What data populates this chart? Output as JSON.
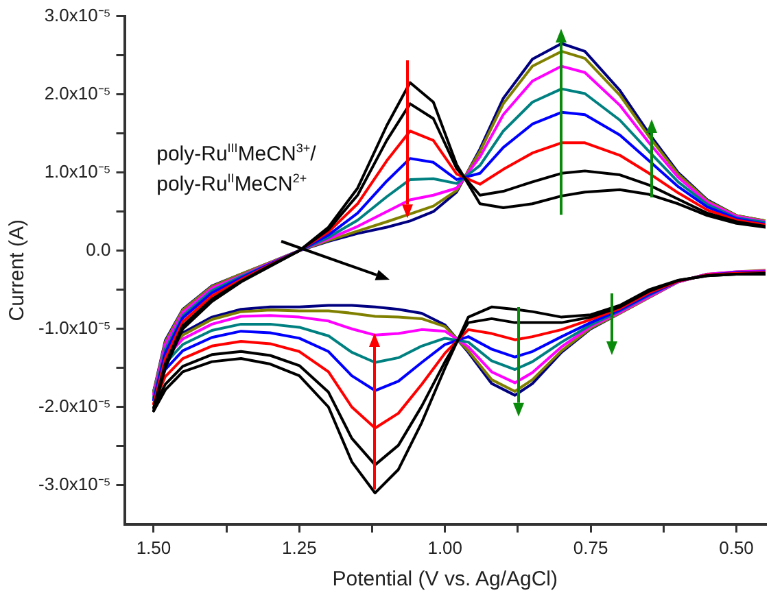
{
  "chart_data": {
    "type": "line",
    "xlabel": "Potential (V vs. Ag/AgCl)",
    "ylabel": "Current (A)",
    "annotations": [
      "poly-Ru$^{III}$MeCN$^{3+}$/\npoly-Ru$^{II}$MeCN$^{2+}$"
    ],
    "xlim": [
      1.55,
      0.45
    ],
    "xticks": [
      {
        "value": 1.5,
        "label": "1.50"
      },
      {
        "value": 1.375,
        "label": null
      },
      {
        "value": 1.25,
        "label": "1.25"
      },
      {
        "value": 1.125,
        "label": null
      },
      {
        "value": 1.0,
        "label": "1.00"
      },
      {
        "value": 0.875,
        "label": null
      },
      {
        "value": 0.75,
        "label": "0.75"
      },
      {
        "value": 0.625,
        "label": null
      },
      {
        "value": 0.5,
        "label": "0.50"
      }
    ],
    "ylim": [
      -3.5e-05,
      3e-05
    ],
    "yticks": [
      {
        "value": -3e-05,
        "label": "-3.0x10⁻⁵"
      },
      {
        "value": -2.5e-05,
        "label": null
      },
      {
        "value": -2e-05,
        "label": "-2.0x10⁻⁵"
      },
      {
        "value": -1.5e-05,
        "label": null
      },
      {
        "value": -1e-05,
        "label": "-1.0x10⁻⁵"
      },
      {
        "value": -5e-06,
        "label": null
      },
      {
        "value": 0,
        "label": "0.0"
      },
      {
        "value": 5e-06,
        "label": null
      },
      {
        "value": 1e-05,
        "label": "1.0x10⁻⁵"
      },
      {
        "value": 1.5e-05,
        "label": null
      },
      {
        "value": 2e-05,
        "label": "2.0x10⁻⁵"
      },
      {
        "value": 2.5e-05,
        "label": null
      },
      {
        "value": 3e-05,
        "label": "3.0x10⁻⁵"
      }
    ],
    "legend": false,
    "marker": "none",
    "line_style": "solid",
    "series": [
      {
        "color": "#000000",
        "x": [
          1.5,
          1.48,
          1.45,
          1.4,
          1.35,
          1.3,
          1.25,
          1.2,
          1.15,
          1.1,
          1.06,
          1.02,
          0.98,
          0.94,
          0.9,
          0.85,
          0.8,
          0.76,
          0.7,
          0.65,
          0.6,
          0.55,
          0.5,
          0.45
        ],
        "values": [
          -2.05e-05,
          -1.5e-05,
          -1e-05,
          -6.5e-06,
          -4e-06,
          -2e-06,
          0,
          3e-06,
          8e-06,
          1.6e-05,
          2.15e-05,
          1.9e-05,
          1.1e-05,
          6e-06,
          5.5e-06,
          6e-06,
          7e-06,
          7.5e-06,
          7.8e-06,
          7.2e-06,
          6e-06,
          4.5e-06,
          3.5e-06,
          3e-06
        ]
      },
      {
        "color": "#000000",
        "x": [
          0.45,
          0.5,
          0.55,
          0.6,
          0.65,
          0.7,
          0.75,
          0.8,
          0.85,
          0.88,
          0.92,
          0.96,
          1.0,
          1.04,
          1.08,
          1.12,
          1.16,
          1.2,
          1.25,
          1.3,
          1.35,
          1.4,
          1.45,
          1.48,
          1.5
        ],
        "values": [
          -3e-06,
          -3e-06,
          -3.2e-06,
          -3.8e-06,
          -5e-06,
          -7e-06,
          -8.2e-06,
          -8.5e-06,
          -7.8e-06,
          -7.5e-06,
          -7.2e-06,
          -8.5e-06,
          -1.5e-05,
          -2.2e-05,
          -2.8e-05,
          -3.1e-05,
          -2.7e-05,
          -2e-05,
          -1.6e-05,
          -1.45e-05,
          -1.38e-05,
          -1.42e-05,
          -1.55e-05,
          -1.78e-05,
          -2.05e-05
        ]
      },
      {
        "color": "#000000",
        "x": [
          1.5,
          1.48,
          1.45,
          1.4,
          1.35,
          1.3,
          1.25,
          1.2,
          1.15,
          1.1,
          1.06,
          1.02,
          0.98,
          0.94,
          0.9,
          0.85,
          0.8,
          0.76,
          0.7,
          0.65,
          0.6,
          0.55,
          0.5,
          0.45
        ],
        "values": [
          -2.01e-05,
          -1.45e-05,
          -9.6e-06,
          -6.2e-06,
          -3.9e-06,
          -1.9e-06,
          0,
          2.7e-06,
          7.1e-06,
          1.41e-05,
          1.88e-05,
          1.69e-05,
          1.05e-05,
          7.1e-06,
          7.6e-06,
          8.8e-06,
          9.9e-06,
          1.02e-05,
          9.7e-06,
          8.4e-06,
          6.6e-06,
          4.8e-06,
          3.7e-06,
          3.1e-06
        ]
      },
      {
        "color": "#000000",
        "x": [
          0.45,
          0.5,
          0.55,
          0.6,
          0.65,
          0.7,
          0.75,
          0.8,
          0.85,
          0.88,
          0.92,
          0.96,
          1.0,
          1.04,
          1.08,
          1.12,
          1.16,
          1.2,
          1.25,
          1.3,
          1.35,
          1.4,
          1.45,
          1.48,
          1.5
        ],
        "values": [
          -2.9e-06,
          -3e-06,
          -3.2e-06,
          -3.8e-06,
          -5.2e-06,
          -7.2e-06,
          -8.5e-06,
          -9.2e-06,
          -9.2e-06,
          -9.2e-06,
          -8.7e-06,
          -9.2e-06,
          -1.42e-05,
          -1.99e-05,
          -2.49e-05,
          -2.74e-05,
          -2.4e-05,
          -1.81e-05,
          -1.47e-05,
          -1.34e-05,
          -1.29e-05,
          -1.33e-05,
          -1.48e-05,
          -1.71e-05,
          -2.01e-05
        ]
      },
      {
        "color": "#ff0000",
        "x": [
          1.5,
          1.48,
          1.45,
          1.4,
          1.35,
          1.3,
          1.25,
          1.2,
          1.15,
          1.1,
          1.06,
          1.02,
          0.98,
          0.94,
          0.9,
          0.85,
          0.8,
          0.76,
          0.7,
          0.65,
          0.6,
          0.55,
          0.5,
          0.45
        ],
        "values": [
          -1.96e-05,
          -1.38e-05,
          -9.1e-06,
          -5.8e-06,
          -3.7e-06,
          -1.8e-06,
          0,
          2.4e-06,
          6e-06,
          1.15e-05,
          1.53e-05,
          1.41e-05,
          9.8e-06,
          8.5e-06,
          1.04e-05,
          1.25e-05,
          1.38e-05,
          1.38e-05,
          1.22e-05,
          9.9e-06,
          7.4e-06,
          5.2e-06,
          3.9e-06,
          3.3e-06
        ]
      },
      {
        "color": "#ff0000",
        "x": [
          0.45,
          0.5,
          0.55,
          0.6,
          0.65,
          0.7,
          0.75,
          0.8,
          0.85,
          0.88,
          0.92,
          0.96,
          1.0,
          1.04,
          1.08,
          1.12,
          1.16,
          1.2,
          1.25,
          1.3,
          1.35,
          1.4,
          1.45,
          1.48,
          1.5
        ],
        "values": [
          -2.8e-06,
          -2.9e-06,
          -3.1e-06,
          -3.9e-06,
          -5.4e-06,
          -7.4e-06,
          -8.8e-06,
          -1.01e-05,
          -1.1e-05,
          -1.14e-05,
          -1.06e-05,
          -1.01e-05,
          -1.31e-05,
          -1.71e-05,
          -2.08e-05,
          -2.27e-05,
          -2e-05,
          -1.55e-05,
          -1.29e-05,
          -1.19e-05,
          -1.16e-05,
          -1.22e-05,
          -1.38e-05,
          -1.61e-05,
          -1.96e-05
        ]
      },
      {
        "color": "#0000ff",
        "x": [
          1.5,
          1.48,
          1.45,
          1.4,
          1.35,
          1.3,
          1.25,
          1.2,
          1.15,
          1.1,
          1.06,
          1.02,
          0.98,
          0.94,
          0.9,
          0.85,
          0.8,
          0.76,
          0.7,
          0.65,
          0.6,
          0.55,
          0.5,
          0.45
        ],
        "values": [
          -1.91e-05,
          -1.31e-05,
          -8.6e-06,
          -5.4e-06,
          -3.5e-06,
          -1.7e-06,
          0,
          2e-06,
          4.8e-06,
          8.9e-06,
          1.18e-05,
          1.13e-05,
          9.1e-06,
          9.9e-06,
          1.32e-05,
          1.62e-05,
          1.77e-05,
          1.74e-05,
          1.48e-05,
          1.15e-05,
          8.2e-06,
          5.6e-06,
          4.1e-06,
          3.4e-06
        ]
      },
      {
        "color": "#0000ff",
        "x": [
          0.45,
          0.5,
          0.55,
          0.6,
          0.65,
          0.7,
          0.75,
          0.8,
          0.85,
          0.88,
          0.92,
          0.96,
          1.0,
          1.04,
          1.08,
          1.12,
          1.16,
          1.2,
          1.25,
          1.3,
          1.35,
          1.4,
          1.45,
          1.48,
          1.5
        ],
        "values": [
          -2.7e-06,
          -2.8e-06,
          -3.1e-06,
          -3.9e-06,
          -5.6e-06,
          -7.6e-06,
          -9.2e-06,
          -1.1e-05,
          -1.29e-05,
          -1.36e-05,
          -1.26e-05,
          -1.1e-05,
          -1.2e-05,
          -1.43e-05,
          -1.67e-05,
          -1.79e-05,
          -1.6e-05,
          -1.29e-05,
          -1.12e-05,
          -1.05e-05,
          -1.03e-05,
          -1.11e-05,
          -1.28e-05,
          -1.52e-05,
          -1.91e-05
        ]
      },
      {
        "color": "#008080",
        "x": [
          1.5,
          1.48,
          1.45,
          1.4,
          1.35,
          1.3,
          1.25,
          1.2,
          1.15,
          1.1,
          1.06,
          1.02,
          0.98,
          0.94,
          0.9,
          0.85,
          0.8,
          0.76,
          0.7,
          0.65,
          0.6,
          0.55,
          0.5,
          0.45
        ],
        "values": [
          -1.88e-05,
          -1.26e-05,
          -8.3e-06,
          -5.1e-06,
          -3.3e-06,
          -1.7e-06,
          0,
          1.7e-06,
          3.9e-06,
          6.9e-06,
          9.1e-06,
          9.2e-06,
          8.6e-06,
          1.09e-05,
          1.53e-05,
          1.9e-05,
          2.07e-05,
          2.01e-05,
          1.67e-05,
          1.27e-05,
          8.8e-06,
          5.9e-06,
          4.2e-06,
          3.6e-06
        ]
      },
      {
        "color": "#008080",
        "x": [
          0.55,
          0.6,
          0.65,
          0.7,
          0.75,
          0.8,
          0.85,
          0.88,
          0.92,
          0.96,
          1.0,
          1.04,
          1.08,
          1.12,
          1.16,
          1.2,
          1.25,
          1.3,
          1.35,
          1.4,
          1.45,
          1.48,
          1.5
        ],
        "values": [
          -3.1e-06,
          -3.9e-06,
          -5.7e-06,
          -7.7e-06,
          -9.5e-06,
          -1.17e-05,
          -1.42e-05,
          -1.52e-05,
          -1.41e-05,
          -1.17e-05,
          -1.12e-05,
          -1.22e-05,
          -1.37e-05,
          -1.43e-05,
          -1.3e-05,
          -1.09e-05,
          -9.8e-06,
          -9.4e-06,
          -9.4e-06,
          -1.02e-05,
          -1.2e-05,
          -1.44e-05,
          -1.88e-05
        ]
      },
      {
        "color": "#ff00ff",
        "x": [
          1.5,
          1.48,
          1.45,
          1.4,
          1.35,
          1.3,
          1.25,
          1.2,
          1.15,
          1.1,
          1.06,
          1.02,
          0.98,
          0.94,
          0.9,
          0.85,
          0.8,
          0.76,
          0.7,
          0.65,
          0.6,
          0.55,
          0.5,
          0.45
        ],
        "values": [
          -1.84e-05,
          -1.2e-05,
          -7.9e-06,
          -4.8e-06,
          -3.2e-06,
          -1.6e-06,
          0,
          1.5e-06,
          3.1e-06,
          5e-06,
          6.5e-06,
          7.1e-06,
          8e-06,
          1.2e-05,
          1.74e-05,
          2.17e-05,
          2.36e-05,
          2.28e-05,
          1.86e-05,
          1.38e-05,
          9.4e-06,
          6.2e-06,
          4.4e-06,
          3.7e-06
        ]
      },
      {
        "color": "#ff00ff",
        "x": [
          0.45,
          0.5,
          0.55,
          0.6,
          0.65,
          0.7,
          0.75,
          0.8,
          0.85,
          0.88,
          0.92,
          0.96,
          1.0,
          1.04,
          1.08,
          1.12,
          1.16,
          1.2,
          1.25,
          1.3,
          1.35,
          1.4,
          1.45,
          1.48,
          1.5
        ],
        "values": [
          -2.6e-06,
          -2.7e-06,
          -3e-06,
          -4e-06,
          -5.9e-06,
          -7.9e-06,
          -9.7e-06,
          -1.23e-05,
          -1.56e-05,
          -1.69e-05,
          -1.55e-05,
          -1.23e-05,
          -1.03e-05,
          -1.01e-05,
          -1.06e-05,
          -1.08e-05,
          -1e-05,
          -9e-06,
          -8.5e-06,
          -8.3e-06,
          -8.4e-06,
          -9.4e-06,
          -1.13e-05,
          -1.37e-05,
          -1.84e-05
        ]
      },
      {
        "color": "#808000",
        "x": [
          1.5,
          1.48,
          1.45,
          1.4,
          1.35,
          1.3,
          1.25,
          1.2,
          1.15,
          1.1,
          1.06,
          1.02,
          0.98,
          0.94,
          0.9,
          0.85,
          0.8,
          0.76,
          0.7,
          0.65,
          0.6,
          0.55,
          0.5,
          0.45
        ],
        "values": [
          -1.81e-05,
          -1.17e-05,
          -7.6e-06,
          -4.6e-06,
          -3e-06,
          -1.5e-06,
          0,
          1.3e-06,
          2.5e-06,
          3.7e-06,
          4.7e-06,
          5.7e-06,
          7.7e-06,
          1.27e-05,
          1.88e-05,
          2.36e-05,
          2.55e-05,
          2.46e-05,
          1.99e-05,
          1.46e-05,
          9.8e-06,
          6.4e-06,
          4.5e-06,
          3.8e-06
        ]
      },
      {
        "color": "#808000",
        "x": [
          0.45,
          0.5,
          0.55,
          0.6,
          0.65,
          0.7,
          0.75,
          0.8,
          0.85,
          0.88,
          0.92,
          0.96,
          1.0,
          1.04,
          1.08,
          1.12,
          1.16,
          1.2,
          1.25,
          1.3,
          1.35,
          1.4,
          1.45,
          1.48,
          1.5
        ],
        "values": [
          -2.5e-06,
          -2.7e-06,
          -3e-06,
          -4e-06,
          -6e-06,
          -8e-06,
          -9.9e-06,
          -1.28e-05,
          -1.65e-05,
          -1.8e-05,
          -1.65e-05,
          -1.28e-05,
          -9.7e-06,
          -8.7e-06,
          -8.5e-06,
          -8.4e-06,
          -8e-06,
          -7.7e-06,
          -7.7e-06,
          -7.6e-06,
          -7.8e-06,
          -8.8e-06,
          -1.08e-05,
          -1.32e-05,
          -1.81e-05
        ]
      },
      {
        "color": "#000080",
        "x": [
          1.5,
          1.48,
          1.45,
          1.4,
          1.35,
          1.3,
          1.25,
          1.2,
          1.15,
          1.1,
          1.06,
          1.02,
          0.98,
          0.94,
          0.9,
          0.85,
          0.8,
          0.76,
          0.7,
          0.65,
          0.6,
          0.55,
          0.5,
          0.45
        ],
        "values": [
          -1.8e-05,
          -1.15e-05,
          -7.5e-06,
          -4.5e-06,
          -3e-06,
          -1.5e-06,
          0,
          1.2e-06,
          2.2e-06,
          3e-06,
          3.8e-06,
          5e-06,
          7.5e-06,
          1.3e-05,
          1.95e-05,
          2.45e-05,
          2.65e-05,
          2.55e-05,
          2.05e-05,
          1.5e-05,
          1e-05,
          6.5e-06,
          4.5e-06,
          3.8e-06
        ]
      },
      {
        "color": "#000080",
        "x": [
          0.55,
          0.6,
          0.65,
          0.7,
          0.75,
          0.8,
          0.85,
          0.88,
          0.92,
          0.96,
          1.0,
          1.04,
          1.08,
          1.12,
          1.16,
          1.2,
          1.25,
          1.3,
          1.35,
          1.4,
          1.45,
          1.48,
          1.5
        ],
        "values": [
          -3e-06,
          -4e-06,
          -6e-06,
          -8e-06,
          -1e-05,
          -1.3e-05,
          -1.7e-05,
          -1.85e-05,
          -1.7e-05,
          -1.3e-05,
          -9.5e-06,
          -8e-06,
          -7.5e-06,
          -7.2e-06,
          -7e-06,
          -7e-06,
          -7.2e-06,
          -7.2e-06,
          -7.5e-06,
          -8.5e-06,
          -1.05e-05,
          -1.3e-05,
          -1.8e-05
        ]
      }
    ]
  }
}
